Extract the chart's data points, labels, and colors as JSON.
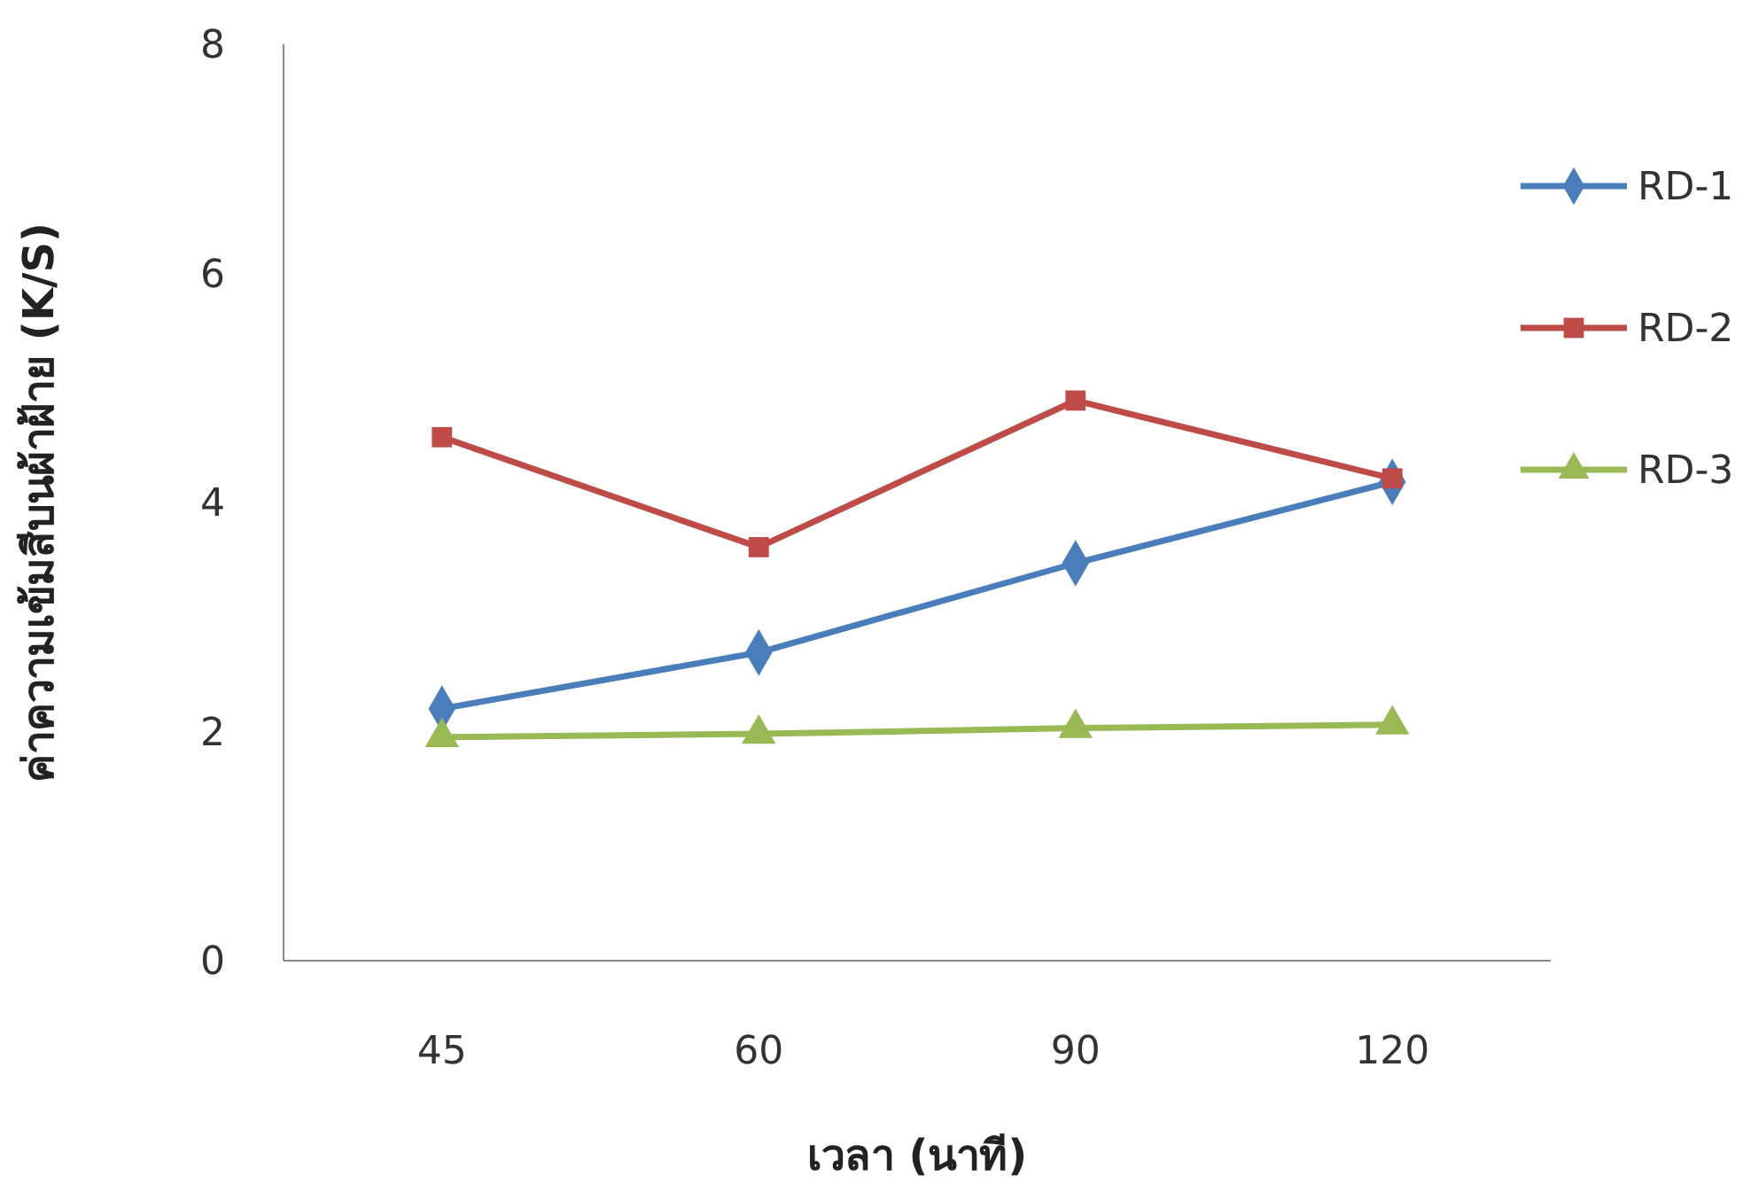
{
  "chart_data": {
    "type": "line",
    "xlabel": "เวลา (นาที)",
    "ylabel": "ค่าความเข้มสีบนผ้าฝ้าย (K/S)",
    "categories": [
      "45",
      "60",
      "90",
      "120"
    ],
    "ylim": [
      0,
      8
    ],
    "yticks": [
      0,
      2,
      4,
      6,
      8
    ],
    "grid": false,
    "legend": "right",
    "line_style": "solid",
    "series": [
      {
        "name": "RD-1",
        "color": "#4a7ebb",
        "marker": "diamond",
        "values": [
          2.2,
          2.69,
          3.47,
          4.18
        ]
      },
      {
        "name": "RD-2",
        "color": "#be4b48",
        "marker": "square",
        "values": [
          4.57,
          3.61,
          4.89,
          4.21
        ]
      },
      {
        "name": "RD-3",
        "color": "#98b954",
        "marker": "triangle",
        "values": [
          1.95,
          1.98,
          2.03,
          2.06
        ]
      }
    ]
  }
}
